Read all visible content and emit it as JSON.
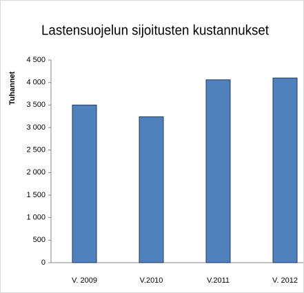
{
  "chart_data": {
    "type": "bar",
    "title": "Lastensuojelun sijoitusten kustannukset",
    "y_label": "Tuhannet",
    "categories": [
      "V. 2009",
      "V.2010",
      "V.2011",
      "V. 2012"
    ],
    "values": [
      3500,
      3240,
      4060,
      4100
    ],
    "color": "#4f81bd",
    "ylim": [
      0,
      4500
    ],
    "yticks": [
      0,
      500,
      {
        "value": 1000,
        "label": "1 000"
      },
      {
        "value": 1500,
        "label": "1 500"
      },
      {
        "value": 2000,
        "label": "2 000"
      },
      {
        "value": 2500,
        "label": "2 500"
      },
      {
        "value": 3000,
        "label": "3 000"
      },
      {
        "value": 3500,
        "label": "3 500"
      },
      {
        "value": 4000,
        "label": "4 000"
      },
      {
        "value": 4500,
        "label": "4 500"
      }
    ],
    "grid": false
  }
}
